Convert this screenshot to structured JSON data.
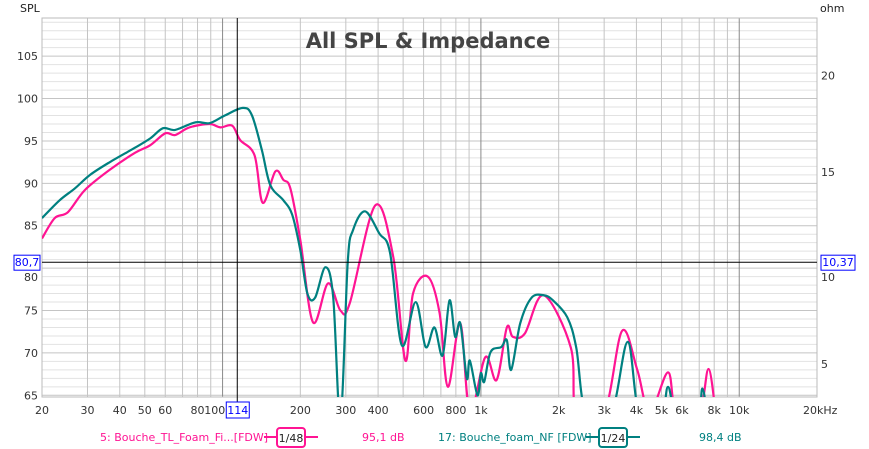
{
  "chart_data": {
    "type": "line",
    "title": "All SPL & Impedance",
    "ylabel": "SPL",
    "y2label": "ohm",
    "xlabel": "",
    "xscale": "log",
    "xlim": [
      20,
      20000
    ],
    "ylim": [
      64.8,
      109.5
    ],
    "y2lim": [
      3.28,
      23.0
    ],
    "grid": true,
    "x_ticks": [
      {
        "v": 20,
        "label": "20"
      },
      {
        "v": 30,
        "label": "30"
      },
      {
        "v": 40,
        "label": "40"
      },
      {
        "v": 50,
        "label": "50"
      },
      {
        "v": 60,
        "label": "60"
      },
      {
        "v": 80,
        "label": "80"
      },
      {
        "v": 100,
        "label": "100"
      },
      {
        "v": 200,
        "label": "200"
      },
      {
        "v": 300,
        "label": "300"
      },
      {
        "v": 400,
        "label": "400"
      },
      {
        "v": 600,
        "label": "600"
      },
      {
        "v": 800,
        "label": "800"
      },
      {
        "v": 1000,
        "label": "1k"
      },
      {
        "v": 2000,
        "label": "2k"
      },
      {
        "v": 3000,
        "label": "3k"
      },
      {
        "v": 4000,
        "label": "4k"
      },
      {
        "v": 5000,
        "label": "5k"
      },
      {
        "v": 6000,
        "label": "6k"
      },
      {
        "v": 8000,
        "label": "8k"
      },
      {
        "v": 10000,
        "label": "10k"
      },
      {
        "v": 20000,
        "label": "20kHz"
      }
    ],
    "y_ticks": [
      65,
      70,
      75,
      80,
      85,
      90,
      95,
      100,
      105
    ],
    "y2_ticks": [
      5,
      10,
      15,
      20
    ],
    "cursor": {
      "x": 114,
      "x_label": "114",
      "y": 80.7,
      "y_label": "80,7",
      "y2_label": "10,37"
    },
    "series": [
      {
        "name": "5: Bouche_TL_Foam_Fi...[FDW]",
        "smoothing": "1/48",
        "value_label": "95,1 dB",
        "color": "#ff1493",
        "points": [
          [
            20,
            83.5
          ],
          [
            22.4,
            85.9
          ],
          [
            25.2,
            86.6
          ],
          [
            29.3,
            89.2
          ],
          [
            36.6,
            91.6
          ],
          [
            45.8,
            93.6
          ],
          [
            52.5,
            94.5
          ],
          [
            60,
            95.9
          ],
          [
            65.5,
            95.7
          ],
          [
            74.5,
            96.6
          ],
          [
            89,
            97
          ],
          [
            98,
            96.6
          ],
          [
            109,
            96.8
          ],
          [
            117,
            95.1
          ],
          [
            133,
            93.3
          ],
          [
            143,
            87.7
          ],
          [
            160,
            91.4
          ],
          [
            172,
            90.4
          ],
          [
            183,
            89.4
          ],
          [
            200,
            83.3
          ],
          [
            224,
            73.6
          ],
          [
            256,
            78.2
          ],
          [
            286,
            75
          ],
          [
            311,
            75.9
          ],
          [
            390,
            87.4
          ],
          [
            458,
            81.3
          ],
          [
            510,
            69.1
          ],
          [
            546,
            77
          ],
          [
            623,
            79
          ],
          [
            692,
            74.7
          ],
          [
            745,
            66
          ],
          [
            832,
            73.5
          ],
          [
            906,
            63
          ],
          [
            1040,
            69.5
          ],
          [
            1150,
            66.8
          ],
          [
            1260,
            73
          ],
          [
            1330,
            71.9
          ],
          [
            1480,
            72.3
          ],
          [
            1750,
            76.8
          ],
          [
            2230,
            70.6
          ],
          [
            2340,
            63
          ],
          [
            3000,
            63
          ],
          [
            3520,
            72.6
          ],
          [
            4030,
            68
          ],
          [
            4500,
            63
          ],
          [
            5300,
            67.7
          ],
          [
            5700,
            63
          ],
          [
            7000,
            63
          ],
          [
            7600,
            68.1
          ],
          [
            8100,
            63
          ]
        ]
      },
      {
        "name": "17: Bouche_foam_NF [FDW]",
        "smoothing": "1/24",
        "value_label": "98,4 dB",
        "color": "#008080",
        "points": [
          [
            20,
            85.9
          ],
          [
            23.4,
            88
          ],
          [
            26.8,
            89.4
          ],
          [
            30.7,
            91
          ],
          [
            36.6,
            92.5
          ],
          [
            45.8,
            94.2
          ],
          [
            52.5,
            95.3
          ],
          [
            58.8,
            96.5
          ],
          [
            65.5,
            96.3
          ],
          [
            78.5,
            97.2
          ],
          [
            89,
            97.1
          ],
          [
            102,
            98
          ],
          [
            120,
            98.9
          ],
          [
            130,
            98
          ],
          [
            142,
            93.9
          ],
          [
            153,
            89.8
          ],
          [
            172,
            88
          ],
          [
            186,
            86.3
          ],
          [
            200,
            82.1
          ],
          [
            213,
            77
          ],
          [
            228,
            76.5
          ],
          [
            250,
            80.1
          ],
          [
            268,
            76.6
          ],
          [
            286,
            62
          ],
          [
            305,
            80.6
          ],
          [
            320,
            84.5
          ],
          [
            356,
            86.7
          ],
          [
            404,
            84.1
          ],
          [
            445,
            81.8
          ],
          [
            494,
            70.9
          ],
          [
            559,
            76
          ],
          [
            611,
            70.7
          ],
          [
            661,
            73
          ],
          [
            711,
            69.7
          ],
          [
            756,
            76.2
          ],
          [
            795,
            71.9
          ],
          [
            832,
            73.5
          ],
          [
            882,
            67
          ],
          [
            906,
            69.1
          ],
          [
            970,
            65
          ],
          [
            1000,
            67.6
          ],
          [
            1030,
            66.6
          ],
          [
            1090,
            70.1
          ],
          [
            1200,
            70.7
          ],
          [
            1260,
            71.5
          ],
          [
            1310,
            68
          ],
          [
            1420,
            73.5
          ],
          [
            1570,
            76.5
          ],
          [
            1750,
            76.8
          ],
          [
            1900,
            76.2
          ],
          [
            2160,
            74.2
          ],
          [
            2340,
            70.6
          ],
          [
            2550,
            63
          ],
          [
            3200,
            63
          ],
          [
            3700,
            71.3
          ],
          [
            4100,
            63
          ],
          [
            5000,
            63
          ],
          [
            5300,
            66
          ],
          [
            5700,
            63
          ],
          [
            6900,
            63
          ],
          [
            7200,
            65.8
          ],
          [
            7500,
            63
          ]
        ]
      }
    ]
  }
}
